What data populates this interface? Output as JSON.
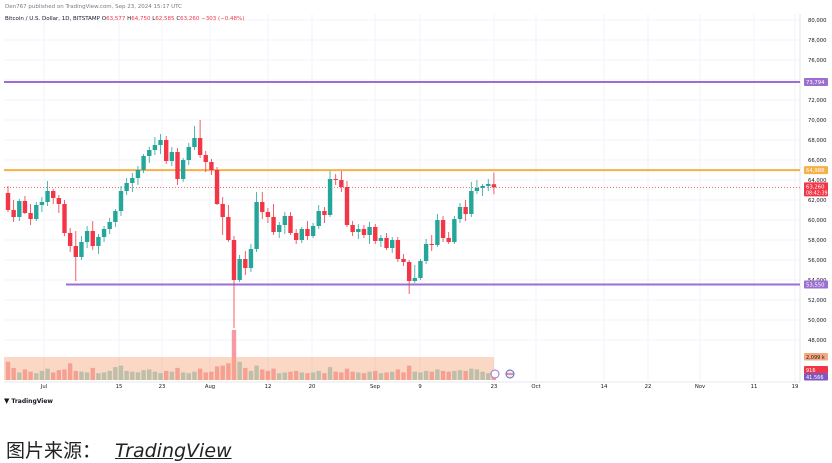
{
  "header": {
    "published": "Den767 published on TradingView.com, Sep 23, 2024 15:17 UTC",
    "symbol": "Bitcoin / U.S. Dollar, 1D, BITSTAMP",
    "o_label": "O",
    "o": "63,577",
    "h_label": "H",
    "h": "64,750",
    "l_label": "L",
    "l": "62,585",
    "c_label": "C",
    "c": "63,260",
    "change": "−303 (−0.48%)"
  },
  "brand": "TradingView",
  "caption": {
    "label": "图片来源：",
    "link": "TradingView"
  },
  "colors": {
    "up": "#26a69a",
    "down": "#f23645",
    "line_high": "#9b6fd0",
    "line_mid": "#f5b048",
    "line_low": "#9b6fd0",
    "price": "#f23645"
  },
  "chart_data": {
    "type": "candlestick",
    "price_axis": {
      "ticks": [
        80000,
        78000,
        76000,
        74000,
        72000,
        70000,
        68000,
        66000,
        64000,
        62000,
        60000,
        58000,
        56000,
        54000,
        52000,
        50000,
        48000
      ],
      "tick_labels": [
        "80,000",
        "78,000",
        "76,000",
        "74,000",
        "72,000",
        "70,000",
        "68,000",
        "66,000",
        "64,000",
        "62,000",
        "60,000",
        "58,000",
        "56,000",
        "54,000",
        "52,000",
        "50,000",
        "48,000"
      ],
      "ylim": [
        44500,
        81000
      ]
    },
    "time_axis": {
      "labels": [
        "Jul",
        "15",
        "23",
        "Aug",
        "12",
        "20",
        "Sep",
        "9",
        "23",
        "Oct",
        "14",
        "22",
        "Nov",
        "11",
        "19"
      ]
    },
    "horizontal_lines": [
      {
        "value": 73794,
        "label": "73,794",
        "color": "#9b6fd0"
      },
      {
        "value": 64988,
        "label": "64,988",
        "color": "#f5b048"
      },
      {
        "value": 53550,
        "label": "53,550",
        "color": "#9b6fd0"
      }
    ],
    "last_price": {
      "value": 63260,
      "label": "63,260",
      "countdown": "08:42:39"
    },
    "volume_labels": [
      {
        "label": "2,099 k",
        "color": "#f5a97f"
      },
      {
        "label": "916",
        "color": "#f23645"
      },
      {
        "label": "41.566",
        "color": "#7e57c2"
      }
    ],
    "candles": [
      [
        62700,
        63400,
        60800,
        61000
      ],
      [
        61000,
        62000,
        59800,
        60300
      ],
      [
        60300,
        62100,
        59900,
        61900
      ],
      [
        61900,
        62400,
        60600,
        60700
      ],
      [
        60700,
        61600,
        59500,
        60100
      ],
      [
        60100,
        61800,
        59900,
        61500
      ],
      [
        61500,
        62300,
        60800,
        61800
      ],
      [
        61800,
        63900,
        61400,
        62900
      ],
      [
        62900,
        63100,
        61600,
        62200
      ],
      [
        62200,
        62500,
        60700,
        61600
      ],
      [
        61600,
        62000,
        58400,
        58700
      ],
      [
        58700,
        59200,
        56800,
        57400
      ],
      [
        57400,
        58900,
        53900,
        56300
      ],
      [
        56300,
        58400,
        56000,
        57800
      ],
      [
        57800,
        59400,
        57200,
        58900
      ],
      [
        58900,
        59900,
        57000,
        57400
      ],
      [
        57400,
        58600,
        56600,
        58300
      ],
      [
        58300,
        59400,
        57800,
        59100
      ],
      [
        59100,
        60200,
        58600,
        59800
      ],
      [
        59800,
        61100,
        59300,
        60900
      ],
      [
        60900,
        63400,
        60400,
        62900
      ],
      [
        62900,
        64200,
        62500,
        63700
      ],
      [
        63700,
        64700,
        62800,
        64200
      ],
      [
        64200,
        65400,
        63500,
        65000
      ],
      [
        65000,
        66600,
        64700,
        66400
      ],
      [
        66400,
        67300,
        65700,
        67000
      ],
      [
        67000,
        68300,
        66500,
        67500
      ],
      [
        67500,
        68600,
        66600,
        68000
      ],
      [
        68000,
        68400,
        65600,
        65900
      ],
      [
        65900,
        67300,
        65400,
        66800
      ],
      [
        66800,
        67200,
        63500,
        64100
      ],
      [
        64100,
        66200,
        63800,
        66000
      ],
      [
        66000,
        67700,
        65500,
        67300
      ],
      [
        67300,
        69400,
        67000,
        68200
      ],
      [
        68200,
        70000,
        66200,
        66500
      ],
      [
        66500,
        66900,
        64800,
        65800
      ],
      [
        65800,
        66100,
        64500,
        65000
      ],
      [
        65000,
        65300,
        61500,
        61600
      ],
      [
        61600,
        62300,
        58500,
        60300
      ],
      [
        60300,
        61500,
        57800,
        58000
      ],
      [
        58000,
        58400,
        49200,
        54000
      ],
      [
        54000,
        56500,
        53800,
        56100
      ],
      [
        56100,
        56900,
        54500,
        55200
      ],
      [
        55200,
        57600,
        54800,
        57100
      ],
      [
        57100,
        62800,
        56800,
        61800
      ],
      [
        61800,
        62800,
        60100,
        60800
      ],
      [
        60800,
        61200,
        59700,
        60300
      ],
      [
        60300,
        61600,
        58500,
        58800
      ],
      [
        58800,
        59800,
        58200,
        59500
      ],
      [
        59500,
        60800,
        58600,
        60400
      ],
      [
        60400,
        60800,
        58500,
        58700
      ],
      [
        58700,
        59100,
        57600,
        58000
      ],
      [
        58000,
        59300,
        57700,
        59100
      ],
      [
        59100,
        59900,
        58000,
        58400
      ],
      [
        58400,
        59700,
        58200,
        59400
      ],
      [
        59400,
        61500,
        59100,
        60900
      ],
      [
        60900,
        61300,
        59700,
        60500
      ],
      [
        60500,
        64900,
        60300,
        64100
      ],
      [
        64100,
        64600,
        63500,
        64000
      ],
      [
        64000,
        64900,
        62800,
        63300
      ],
      [
        63300,
        63900,
        59300,
        59500
      ],
      [
        59500,
        59900,
        58400,
        58800
      ],
      [
        58800,
        59600,
        58100,
        59100
      ],
      [
        59100,
        59500,
        58200,
        58500
      ],
      [
        58500,
        59800,
        57600,
        59300
      ],
      [
        59300,
        59600,
        57600,
        57900
      ],
      [
        57900,
        58500,
        57300,
        58200
      ],
      [
        58200,
        58700,
        57000,
        57200
      ],
      [
        57200,
        58300,
        56700,
        58000
      ],
      [
        58000,
        58300,
        55800,
        56100
      ],
      [
        56100,
        56600,
        55400,
        55800
      ],
      [
        55800,
        56000,
        52600,
        53900
      ],
      [
        53900,
        55500,
        53700,
        54200
      ],
      [
        54200,
        56100,
        54000,
        55900
      ],
      [
        55900,
        58100,
        55600,
        57600
      ],
      [
        57600,
        58500,
        56900,
        57500
      ],
      [
        57500,
        60600,
        57300,
        60000
      ],
      [
        60000,
        60400,
        57800,
        58200
      ],
      [
        58200,
        58800,
        57600,
        57800
      ],
      [
        57800,
        60400,
        57600,
        60100
      ],
      [
        60100,
        61700,
        59700,
        61300
      ],
      [
        61300,
        62000,
        59900,
        60600
      ],
      [
        60600,
        63800,
        60300,
        62900
      ],
      [
        62900,
        64000,
        62600,
        63200
      ],
      [
        63200,
        63600,
        62400,
        63400
      ],
      [
        63400,
        64100,
        62900,
        63600
      ],
      [
        63577,
        64750,
        62585,
        63260
      ]
    ],
    "volumes": [
      120,
      80,
      50,
      70,
      55,
      45,
      60,
      75,
      50,
      65,
      70,
      110,
      60,
      55,
      50,
      80,
      45,
      50,
      60,
      85,
      95,
      60,
      55,
      50,
      65,
      70,
      55,
      45,
      60,
      55,
      80,
      50,
      45,
      55,
      75,
      50,
      55,
      90,
      95,
      110,
      330,
      120,
      80,
      60,
      95,
      70,
      60,
      75,
      45,
      50,
      55,
      60,
      50,
      45,
      50,
      60,
      45,
      85,
      55,
      50,
      75,
      55,
      50,
      45,
      55,
      60,
      45,
      50,
      55,
      70,
      50,
      95,
      55,
      50,
      60,
      55,
      70,
      60,
      55,
      60,
      65,
      60,
      75,
      70,
      55,
      45,
      40
    ],
    "projection_icons": [
      "globe-icon",
      "flag-icon"
    ]
  }
}
